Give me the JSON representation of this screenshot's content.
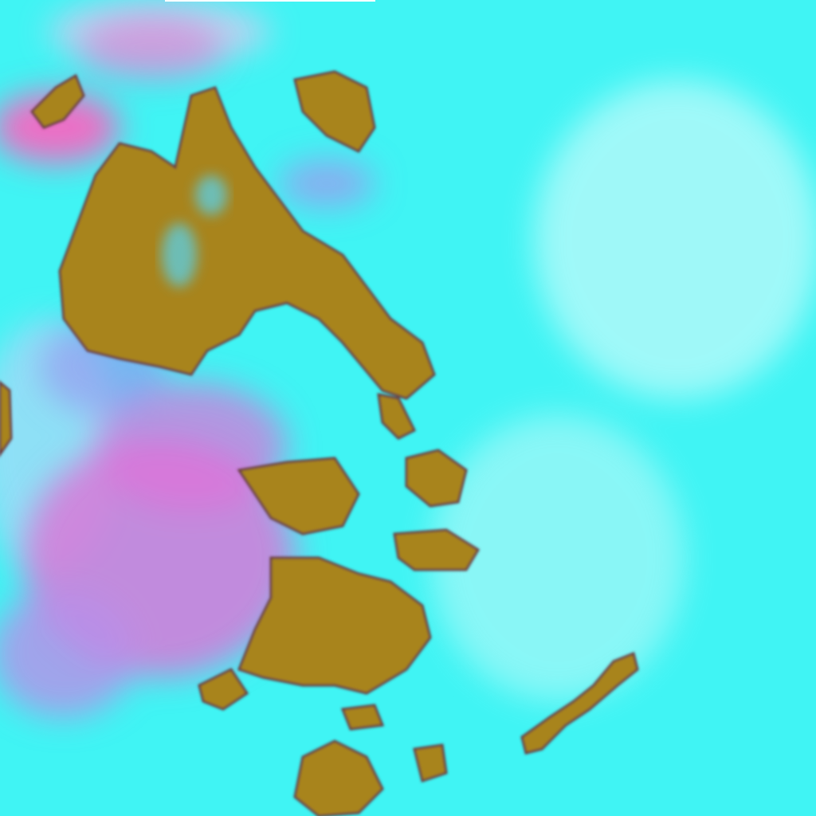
{
  "image": {
    "kind": "false-color satellite imagery",
    "colors": {
      "background_cyan": "#40f4f4",
      "haze_light": "#c8fbfb",
      "magenta_haze": "#e070d8",
      "pink_strong": "#ff5fc0",
      "violet_haze": "#a890ee",
      "land_brown": "#a8841c",
      "land_edge": "#6a3a40",
      "top_strip": "#ffffff"
    }
  }
}
